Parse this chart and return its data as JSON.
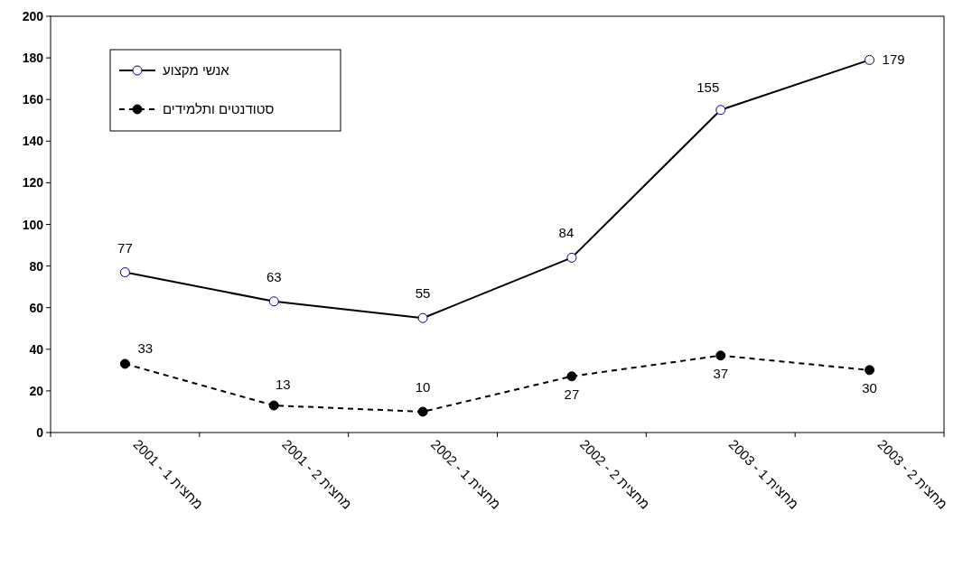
{
  "chart_data": {
    "type": "line",
    "categories": [
      "מחצית 1 - 2001",
      "מחצית 2 - 2001",
      "מחצית 1 - 2002",
      "מחצית 2 - 2002",
      "מחצית 1 - 2003",
      "מחצית 2 - 2003"
    ],
    "series": [
      {
        "name": "אנשי מקצוע",
        "color": "#000000",
        "values": [
          77,
          63,
          55,
          84,
          155,
          179
        ],
        "marker": "circle",
        "line_style": "solid"
      },
      {
        "name": "סטודנטים ותלמידים",
        "color": "#000000",
        "values": [
          33,
          13,
          10,
          27,
          37,
          30
        ],
        "marker": "circle",
        "line_style": "dashed"
      }
    ],
    "ylim": [
      0,
      200
    ],
    "yticks": [
      0,
      20,
      40,
      60,
      80,
      100,
      120,
      140,
      160,
      180,
      200
    ],
    "data_labels": true,
    "grid": false,
    "legend": "top left"
  }
}
